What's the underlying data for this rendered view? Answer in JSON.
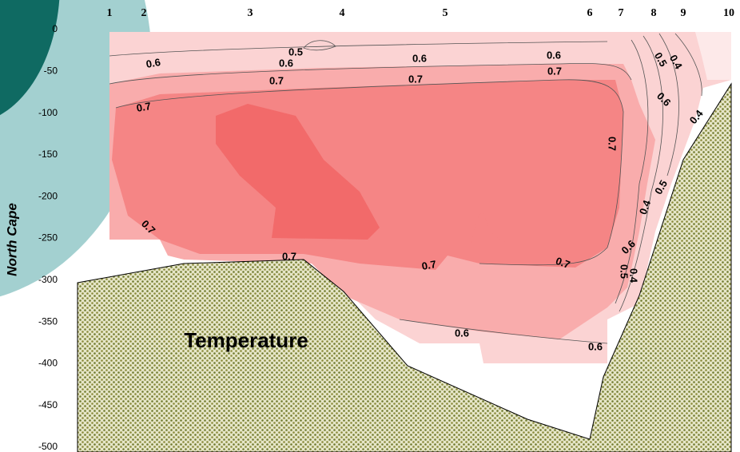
{
  "chart_data": {
    "type": "contour",
    "y_label": "North Cape",
    "annotation": "Temperature",
    "stations": [
      "1",
      "2",
      "3",
      "4",
      "5",
      "6",
      "7",
      "8",
      "9",
      "10"
    ],
    "ylim": [
      -500,
      0
    ],
    "yticks": [
      0,
      -50,
      -100,
      -150,
      -200,
      -250,
      -300,
      -350,
      -400,
      -450,
      -500
    ],
    "contour_labels": [
      0.5,
      0.6,
      0.6,
      0.6,
      0.6,
      0.7,
      0.7,
      0.7,
      0.7,
      0.7,
      0.7,
      0.7,
      0.7,
      0.7,
      0.6,
      0.6,
      0.5,
      0.4,
      0.6,
      0.4,
      0.5,
      0.4,
      0.6,
      0.5,
      0.4
    ]
  }
}
